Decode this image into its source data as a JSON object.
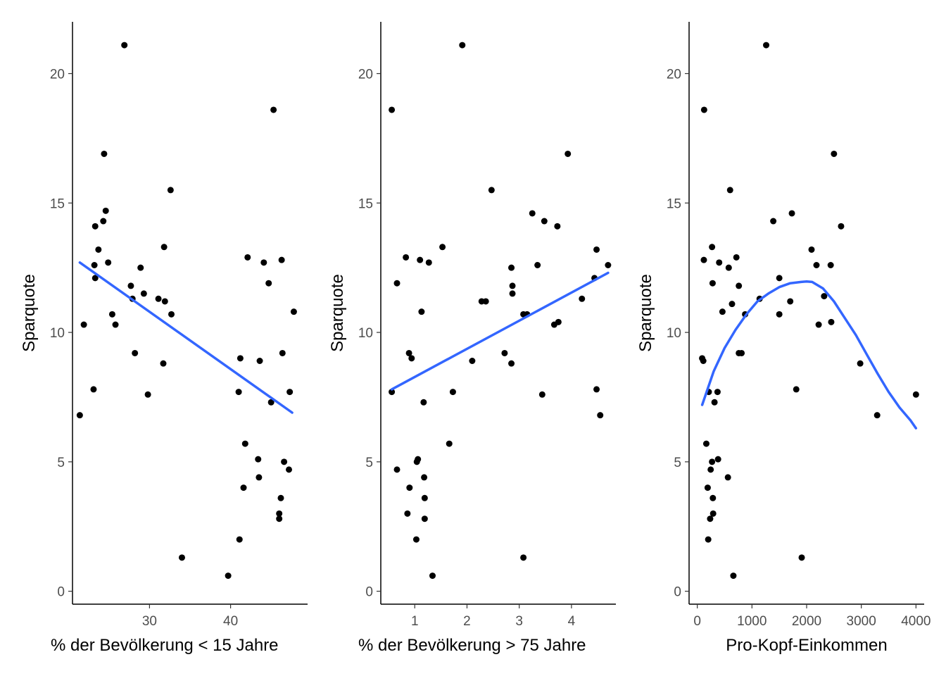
{
  "chart_data": [
    {
      "type": "scatter",
      "title": "",
      "xlabel": "% der Bevölkerung < 15 Jahre",
      "ylabel": "Sparquote",
      "xlim": [
        20.5,
        49.5
      ],
      "ylim": [
        -0.5,
        22
      ],
      "xticks": [
        30,
        40
      ],
      "yticks": [
        0,
        5,
        10,
        15,
        20
      ],
      "grid": false,
      "points": [
        [
          21.4,
          6.8
        ],
        [
          21.9,
          10.3
        ],
        [
          23.1,
          7.8
        ],
        [
          23.2,
          12.6
        ],
        [
          23.3,
          12.1
        ],
        [
          23.3,
          14.1
        ],
        [
          23.7,
          13.2
        ],
        [
          24.3,
          14.3
        ],
        [
          24.4,
          16.9
        ],
        [
          24.6,
          14.7
        ],
        [
          24.9,
          12.7
        ],
        [
          25.4,
          10.7
        ],
        [
          25.8,
          10.3
        ],
        [
          26.9,
          21.1
        ],
        [
          27.7,
          11.8
        ],
        [
          27.9,
          11.3
        ],
        [
          28.2,
          9.2
        ],
        [
          28.9,
          12.5
        ],
        [
          29.3,
          11.5
        ],
        [
          29.8,
          7.6
        ],
        [
          31.1,
          11.3
        ],
        [
          31.7,
          8.8
        ],
        [
          31.8,
          13.3
        ],
        [
          31.9,
          11.2
        ],
        [
          32.6,
          15.5
        ],
        [
          32.7,
          10.7
        ],
        [
          34.0,
          1.3
        ],
        [
          39.7,
          0.6
        ],
        [
          41.0,
          7.7
        ],
        [
          41.1,
          2.0
        ],
        [
          41.2,
          9.0
        ],
        [
          41.6,
          4.0
        ],
        [
          41.8,
          5.7
        ],
        [
          42.1,
          12.9
        ],
        [
          43.4,
          5.1
        ],
        [
          43.5,
          4.4
        ],
        [
          43.6,
          8.9
        ],
        [
          44.1,
          12.7
        ],
        [
          44.7,
          11.9
        ],
        [
          45.0,
          7.3
        ],
        [
          45.3,
          18.6
        ],
        [
          46.0,
          3.0
        ],
        [
          46.0,
          2.8
        ],
        [
          46.2,
          3.6
        ],
        [
          46.3,
          12.8
        ],
        [
          46.4,
          9.2
        ],
        [
          46.6,
          5.0
        ],
        [
          47.2,
          4.7
        ],
        [
          47.3,
          7.7
        ],
        [
          47.8,
          10.8
        ]
      ],
      "fit": {
        "method": "lm",
        "x": [
          21.4,
          47.6
        ],
        "y": [
          12.7,
          6.9
        ]
      }
    },
    {
      "type": "scatter",
      "title": "",
      "xlabel": "% der Bevölkerung > 75 Jahre",
      "ylabel": "Sparquote",
      "xlim": [
        0.35,
        4.85
      ],
      "ylim": [
        -0.5,
        22
      ],
      "xticks": [
        1,
        2,
        3,
        4
      ],
      "yticks": [
        0,
        5,
        10,
        15,
        20
      ],
      "grid": false,
      "points": [
        [
          0.56,
          18.6
        ],
        [
          0.56,
          7.7
        ],
        [
          0.66,
          4.7
        ],
        [
          0.66,
          11.9
        ],
        [
          0.83,
          12.9
        ],
        [
          0.86,
          3.0
        ],
        [
          0.89,
          9.2
        ],
        [
          0.9,
          4.0
        ],
        [
          0.94,
          9.0
        ],
        [
          1.03,
          2.0
        ],
        [
          1.04,
          5.0
        ],
        [
          1.06,
          5.1
        ],
        [
          1.1,
          12.8
        ],
        [
          1.13,
          10.8
        ],
        [
          1.17,
          7.3
        ],
        [
          1.18,
          4.4
        ],
        [
          1.19,
          2.8
        ],
        [
          1.19,
          3.6
        ],
        [
          1.27,
          12.7
        ],
        [
          1.34,
          0.6
        ],
        [
          1.53,
          13.3
        ],
        [
          1.66,
          5.7
        ],
        [
          1.73,
          7.7
        ],
        [
          1.91,
          21.1
        ],
        [
          2.1,
          8.9
        ],
        [
          2.28,
          11.2
        ],
        [
          2.36,
          11.2
        ],
        [
          2.47,
          15.5
        ],
        [
          2.72,
          9.2
        ],
        [
          2.85,
          12.5
        ],
        [
          2.85,
          8.8
        ],
        [
          2.87,
          11.8
        ],
        [
          2.87,
          11.5
        ],
        [
          3.08,
          1.3
        ],
        [
          3.08,
          10.7
        ],
        [
          3.15,
          10.7
        ],
        [
          3.25,
          14.6
        ],
        [
          3.35,
          12.6
        ],
        [
          3.44,
          7.6
        ],
        [
          3.48,
          14.3
        ],
        [
          3.67,
          10.3
        ],
        [
          3.73,
          14.1
        ],
        [
          3.75,
          10.4
        ],
        [
          3.93,
          16.9
        ],
        [
          4.2,
          11.3
        ],
        [
          4.44,
          12.1
        ],
        [
          4.48,
          13.2
        ],
        [
          4.48,
          7.8
        ],
        [
          4.55,
          6.8
        ],
        [
          4.7,
          12.6
        ]
      ],
      "fit": {
        "method": "lm",
        "x": [
          0.56,
          4.7
        ],
        "y": [
          7.8,
          12.3
        ]
      }
    },
    {
      "type": "scatter",
      "title": "",
      "xlabel": "Pro-Kopf-Einkommen",
      "ylabel": "Sparquote",
      "xlim": [
        -150,
        4150
      ],
      "ylim": [
        -0.5,
        22
      ],
      "xticks": [
        0,
        1000,
        2000,
        3000,
        4000
      ],
      "yticks": [
        0,
        5,
        10,
        15,
        20
      ],
      "grid": false,
      "points": [
        [
          89,
          9.0
        ],
        [
          110,
          8.9
        ],
        [
          120,
          12.8
        ],
        [
          125,
          18.6
        ],
        [
          165,
          5.7
        ],
        [
          190,
          4.0
        ],
        [
          200,
          2.0
        ],
        [
          210,
          7.7
        ],
        [
          235,
          2.8
        ],
        [
          245,
          4.7
        ],
        [
          270,
          13.3
        ],
        [
          270,
          5.0
        ],
        [
          280,
          11.9
        ],
        [
          285,
          3.6
        ],
        [
          290,
          3.0
        ],
        [
          315,
          7.3
        ],
        [
          370,
          7.7
        ],
        [
          380,
          5.1
        ],
        [
          400,
          12.7
        ],
        [
          460,
          10.8
        ],
        [
          560,
          4.4
        ],
        [
          575,
          12.5
        ],
        [
          600,
          15.5
        ],
        [
          635,
          11.1
        ],
        [
          660,
          0.6
        ],
        [
          715,
          12.9
        ],
        [
          760,
          11.8
        ],
        [
          760,
          9.2
        ],
        [
          810,
          9.2
        ],
        [
          875,
          10.7
        ],
        [
          1140,
          11.3
        ],
        [
          1260,
          21.1
        ],
        [
          1390,
          14.3
        ],
        [
          1500,
          12.1
        ],
        [
          1500,
          10.7
        ],
        [
          1700,
          11.2
        ],
        [
          1730,
          14.6
        ],
        [
          1810,
          7.8
        ],
        [
          1910,
          1.3
        ],
        [
          2090,
          13.2
        ],
        [
          2180,
          12.6
        ],
        [
          2220,
          10.3
        ],
        [
          2320,
          11.4
        ],
        [
          2440,
          12.6
        ],
        [
          2450,
          10.4
        ],
        [
          2500,
          16.9
        ],
        [
          2630,
          14.1
        ],
        [
          2980,
          8.8
        ],
        [
          3290,
          6.8
        ],
        [
          4000,
          7.6
        ]
      ],
      "fit": {
        "method": "loess",
        "x": [
          89,
          300,
          500,
          700,
          900,
          1100,
          1300,
          1500,
          1700,
          1900,
          2000,
          2100,
          2300,
          2500,
          2700,
          2900,
          3100,
          3300,
          3500,
          3700,
          3900,
          4000
        ],
        "y": [
          7.2,
          8.5,
          9.4,
          10.1,
          10.7,
          11.2,
          11.5,
          11.75,
          11.9,
          11.95,
          11.97,
          11.95,
          11.7,
          11.2,
          10.55,
          9.9,
          9.15,
          8.4,
          7.7,
          7.1,
          6.6,
          6.3
        ]
      }
    }
  ],
  "style": {
    "point_color": "#000000",
    "fit_color": "#3366ff",
    "axis_color": "#000000",
    "tick_label_color": "#4d4d4d"
  }
}
